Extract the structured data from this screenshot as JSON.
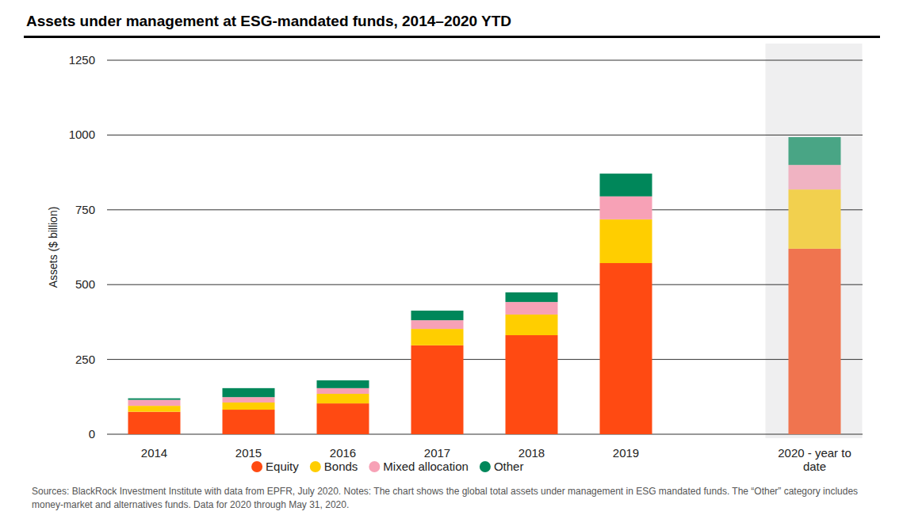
{
  "chart_data": {
    "type": "bar",
    "stacked": true,
    "title": "Assets under management at ESG-mandated funds, 2014–2020 YTD",
    "ylabel": "Assets ($ billion)",
    "note": "Sources: BlackRock Investment Institute with data from EPFR, July 2020. Notes: The chart shows the global total assets under management in ESG mandated funds. The “Other” category includes money-market and alternatives funds. Data for 2020 through May 31, 2020.",
    "categories": [
      "2014",
      "2015",
      "2016",
      "2017",
      "2018",
      "2019",
      "2020 - year to date"
    ],
    "series": [
      {
        "name": "Equity",
        "color": "#ff4a12",
        "colors": [
          "#ff4a12",
          "#ff4a12",
          "#ff4a12",
          "#ff4a12",
          "#ff4a12",
          "#ff4a12",
          "#f0744f"
        ],
        "values": [
          75,
          82,
          103,
          297,
          331,
          572,
          620
        ]
      },
      {
        "name": "Bonds",
        "color": "#ffce00",
        "colors": [
          "#ffce00",
          "#ffce00",
          "#ffce00",
          "#ffce00",
          "#ffce00",
          "#ffce00",
          "#f2d04e"
        ],
        "values": [
          20,
          24,
          32,
          55,
          69,
          146,
          198
        ]
      },
      {
        "name": "Mixed allocation",
        "color": "#f7a1b6",
        "colors": [
          "#f7a1b6",
          "#f7a1b6",
          "#f7a1b6",
          "#f7a1b6",
          "#f7a1b6",
          "#f7a1b6",
          "#f0b3c2"
        ],
        "values": [
          20,
          18,
          19,
          29,
          42,
          77,
          82
        ]
      },
      {
        "name": "Other",
        "color": "#00875a",
        "colors": [
          "#00875a",
          "#00875a",
          "#00875a",
          "#00875a",
          "#00875a",
          "#00875a",
          "#49a585"
        ],
        "values": [
          5,
          30,
          26,
          32,
          32,
          76,
          93
        ]
      }
    ],
    "ylim": [
      0,
      1250
    ],
    "yticks": [
      0,
      250,
      500,
      750,
      1000,
      1250
    ],
    "grid": true,
    "legend": "bottom"
  }
}
